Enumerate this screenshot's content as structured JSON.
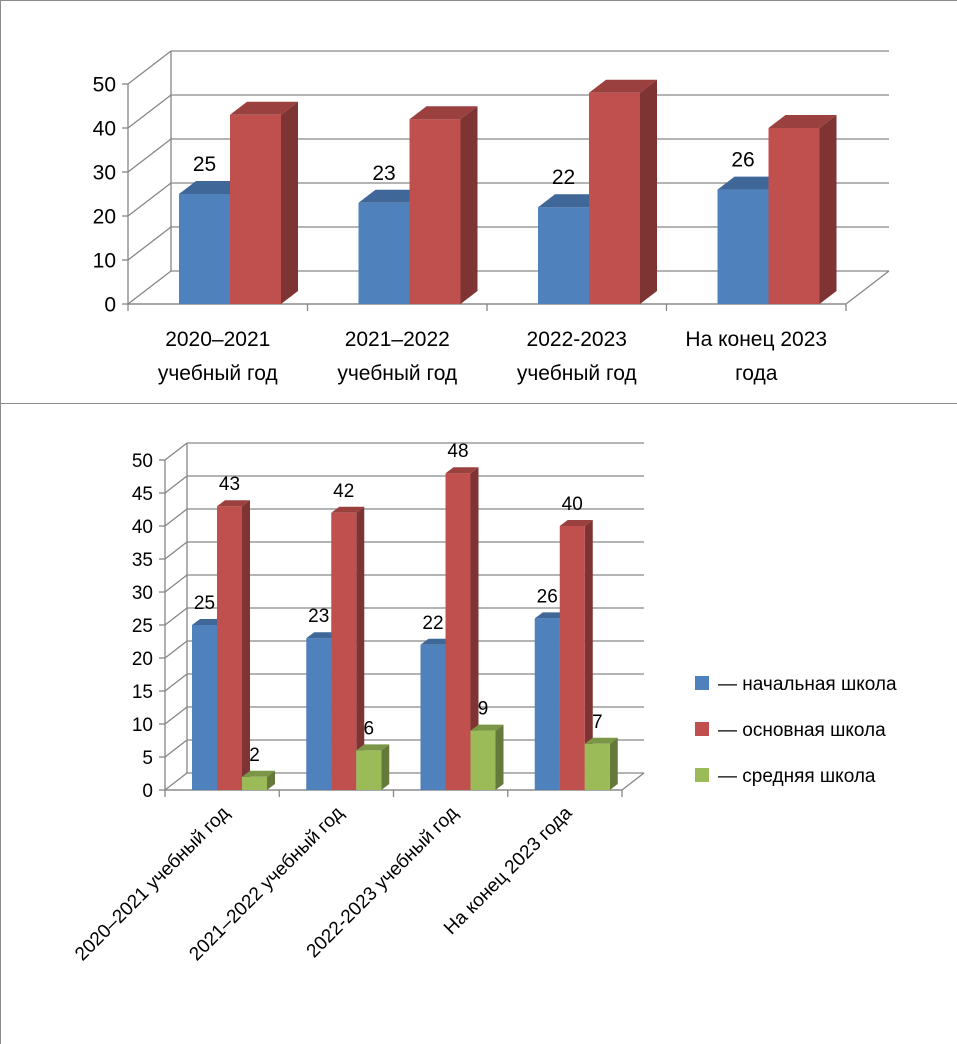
{
  "chart_data": [
    {
      "type": "bar",
      "categories": [
        "2020–2021 учебный год",
        "2021–2022 учебный год",
        "2022-2023 учебный год",
        "На конец 2023 года"
      ],
      "category_lines": [
        [
          "2020–2021",
          "учебный год"
        ],
        [
          "2021–2022",
          "учебный год"
        ],
        [
          "2022-2023",
          "учебный год"
        ],
        [
          "На конец 2023",
          "года"
        ]
      ],
      "series": [
        {
          "values": [
            25,
            23,
            22,
            26
          ],
          "color": "#4f81bd",
          "labels_shown": true
        },
        {
          "values": [
            43,
            42,
            48,
            40
          ],
          "color": "#c0504d",
          "labels_shown": false
        }
      ],
      "yticks": [
        "0",
        "10",
        "20",
        "30",
        "40",
        "50"
      ],
      "ylim": [
        0,
        50
      ],
      "grid": true,
      "legend": "none",
      "style": "3d-column"
    },
    {
      "type": "bar",
      "categories": [
        "2020–2021 учебный год",
        "2021–2022 учебный год",
        "2022-2023 учебный год",
        "На конец 2023 года"
      ],
      "series": [
        {
          "name": "— начальная школа",
          "values": [
            25,
            23,
            22,
            26
          ],
          "color": "#4f81bd"
        },
        {
          "name": "— основная школа",
          "values": [
            43,
            42,
            48,
            40
          ],
          "color": "#c0504d"
        },
        {
          "name": "— средняя школа",
          "values": [
            2,
            6,
            9,
            7
          ],
          "color": "#9bbb59"
        }
      ],
      "yticks": [
        "0",
        "5",
        "10",
        "15",
        "20",
        "25",
        "30",
        "35",
        "40",
        "45",
        "50"
      ],
      "ylim": [
        0,
        50
      ],
      "grid": true,
      "legend": "right",
      "style": "3d-column",
      "xtick_rotation": -45
    }
  ]
}
